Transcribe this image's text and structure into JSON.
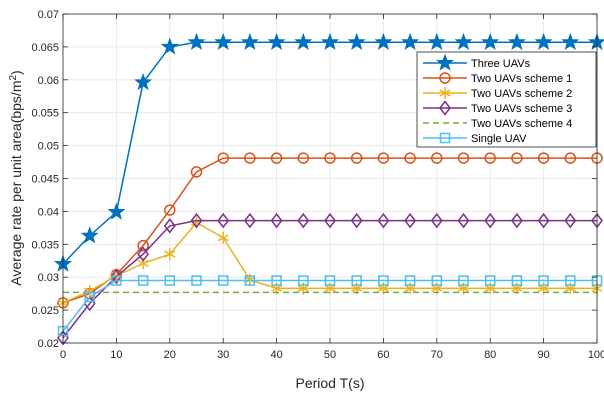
{
  "chart_data": {
    "type": "line",
    "title": "",
    "xlabel": "Period T(s)",
    "ylabel": "Average rate per unit area(bps/m",
    "ylabel_sup": "2",
    "ylabel_close": ")",
    "xlim": [
      0,
      100
    ],
    "ylim": [
      0.02,
      0.07
    ],
    "xticks": [
      0,
      10,
      20,
      30,
      40,
      50,
      60,
      70,
      80,
      90,
      100
    ],
    "xtick_labels": [
      "0",
      "10",
      "20",
      "30",
      "40",
      "50",
      "60",
      "70",
      "80",
      "90",
      "100"
    ],
    "yticks": [
      0.02,
      0.025,
      0.03,
      0.035,
      0.04,
      0.045,
      0.05,
      0.055,
      0.06,
      0.065,
      0.07
    ],
    "ytick_labels": [
      "0.02",
      "0.025",
      "0.03",
      "0.035",
      "0.04",
      "0.045",
      "0.05",
      "0.055",
      "0.06",
      "0.065",
      "0.07"
    ],
    "grid": true,
    "legend_position": "top-right",
    "x": [
      0,
      5,
      10,
      15,
      20,
      25,
      30,
      35,
      40,
      45,
      50,
      55,
      60,
      65,
      70,
      75,
      80,
      85,
      90,
      95,
      100
    ],
    "series": [
      {
        "name": "Three UAVs",
        "color": "#0072BD",
        "marker": "star",
        "line": "solid",
        "values": [
          0.032,
          0.0363,
          0.0399,
          0.0596,
          0.065,
          0.0657,
          0.0657,
          0.0657,
          0.0657,
          0.0657,
          0.0657,
          0.0657,
          0.0657,
          0.0657,
          0.0657,
          0.0657,
          0.0657,
          0.0657,
          0.0657,
          0.0657,
          0.0657
        ]
      },
      {
        "name": "Two UAVs scheme 1",
        "color": "#D95319",
        "marker": "circle",
        "line": "solid",
        "values": [
          0.0261,
          0.0275,
          0.0304,
          0.0348,
          0.0402,
          0.046,
          0.0481,
          0.0481,
          0.0481,
          0.0481,
          0.0481,
          0.0481,
          0.0481,
          0.0481,
          0.0481,
          0.0481,
          0.0481,
          0.0481,
          0.0481,
          0.0481,
          0.0481
        ]
      },
      {
        "name": "Two UAVs scheme 2",
        "color": "#EDB120",
        "marker": "asterisk",
        "line": "solid",
        "values": [
          0.0261,
          0.0279,
          0.0302,
          0.0321,
          0.0335,
          0.0383,
          0.036,
          0.0296,
          0.0283,
          0.0283,
          0.0283,
          0.0283,
          0.0283,
          0.0283,
          0.0283,
          0.0283,
          0.0283,
          0.0283,
          0.0283,
          0.0283,
          0.0283
        ]
      },
      {
        "name": "Two UAVs scheme 3",
        "color": "#7E2F8E",
        "marker": "diamond",
        "line": "solid",
        "values": [
          0.0208,
          0.026,
          0.0301,
          0.0335,
          0.0378,
          0.0386,
          0.0386,
          0.0386,
          0.0386,
          0.0386,
          0.0386,
          0.0386,
          0.0386,
          0.0386,
          0.0386,
          0.0386,
          0.0386,
          0.0386,
          0.0386,
          0.0386,
          0.0386
        ]
      },
      {
        "name": "Two UAVs scheme 4",
        "color": "#77AC30",
        "marker": "none",
        "line": "dashed",
        "values": [
          0.0277,
          0.0277,
          0.0277,
          0.0277,
          0.0277,
          0.0277,
          0.0277,
          0.0277,
          0.0277,
          0.0277,
          0.0277,
          0.0277,
          0.0277,
          0.0277,
          0.0277,
          0.0277,
          0.0277,
          0.0277,
          0.0277,
          0.0277,
          0.0277
        ]
      },
      {
        "name": "Single UAV",
        "color": "#4DBEEE",
        "marker": "square",
        "line": "solid",
        "values": [
          0.0218,
          0.027,
          0.0295,
          0.0295,
          0.0295,
          0.0295,
          0.0295,
          0.0295,
          0.0295,
          0.0295,
          0.0295,
          0.0295,
          0.0295,
          0.0295,
          0.0295,
          0.0295,
          0.0295,
          0.0295,
          0.0295,
          0.0295,
          0.0295
        ]
      }
    ]
  }
}
